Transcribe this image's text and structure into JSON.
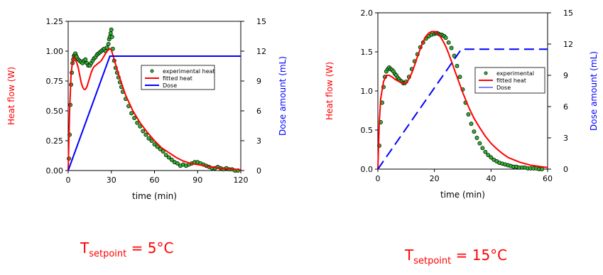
{
  "captions": [
    {
      "main": "T",
      "sub": "setpoint",
      "rest": " = 5°C"
    },
    {
      "main": "T",
      "sub": "setpoint",
      "rest": " = 15°C"
    }
  ],
  "colors": {
    "fit": "#ff0000",
    "dose": "#0000ff",
    "points_fill": "#2fb52f",
    "points_stroke": "#000000"
  },
  "chart_data": [
    {
      "type": "line",
      "xlabel": "time (min)",
      "ylabel": "Heat flow (W)",
      "y2label": "Dose amount (mL)",
      "xlim": [
        0,
        120
      ],
      "ylim": [
        0,
        1.25
      ],
      "y2lim": [
        0,
        15
      ],
      "xticks": [
        "0",
        "30",
        "60",
        "90",
        "120"
      ],
      "yticks": [
        "0.00",
        "0.25",
        "0.50",
        "0.75",
        "1.00",
        "1.25"
      ],
      "y2ticks": [
        "0",
        "3",
        "6",
        "9",
        "12",
        "15"
      ],
      "legend": {
        "position": "right-middle",
        "labels": [
          "experimental heat",
          "fitted heat",
          "Dose"
        ]
      },
      "series": [
        {
          "name": "experimental heat",
          "kind": "points",
          "x": [
            0.5,
            1,
            1.5,
            2,
            2.5,
            3,
            3.5,
            4,
            4.5,
            5,
            5.5,
            6,
            7,
            8,
            9,
            10,
            11,
            12,
            13,
            14,
            15,
            16,
            17,
            18,
            19,
            20,
            21,
            22,
            23,
            24,
            25,
            26,
            27,
            28,
            28.5,
            29,
            29.5,
            30,
            30.5,
            31,
            32,
            33,
            34,
            35,
            36,
            37,
            38,
            40,
            42,
            44,
            46,
            48,
            50,
            52,
            54,
            56,
            58,
            60,
            62,
            64,
            66,
            68,
            70,
            72,
            74,
            76,
            78,
            80,
            82,
            84,
            86,
            88,
            90,
            92,
            94,
            96,
            98,
            100,
            102,
            104,
            106,
            108,
            110,
            112,
            114,
            116,
            118
          ],
          "y": [
            0.1,
            0.3,
            0.55,
            0.72,
            0.82,
            0.9,
            0.93,
            0.96,
            0.97,
            0.98,
            0.96,
            0.95,
            0.93,
            0.92,
            0.91,
            0.9,
            0.92,
            0.93,
            0.9,
            0.88,
            0.88,
            0.9,
            0.92,
            0.94,
            0.95,
            0.97,
            0.98,
            0.99,
            1.0,
            1.01,
            1.02,
            1.0,
            1.03,
            1.06,
            1.1,
            1.12,
            1.15,
            1.18,
            1.12,
            1.02,
            0.92,
            0.86,
            0.82,
            0.78,
            0.74,
            0.7,
            0.66,
            0.6,
            0.54,
            0.48,
            0.44,
            0.4,
            0.37,
            0.33,
            0.3,
            0.27,
            0.25,
            0.22,
            0.2,
            0.18,
            0.16,
            0.13,
            0.11,
            0.09,
            0.07,
            0.06,
            0.04,
            0.05,
            0.04,
            0.05,
            0.06,
            0.07,
            0.07,
            0.06,
            0.05,
            0.04,
            0.03,
            0.02,
            0.02,
            0.03,
            0.02,
            0.01,
            0.02,
            0.01,
            0.01,
            0.0,
            0.0
          ]
        },
        {
          "name": "fitted heat",
          "kind": "line",
          "x": [
            0,
            1,
            2,
            3,
            4,
            5,
            6,
            7,
            8,
            9,
            10,
            11,
            12,
            13,
            14,
            15,
            16,
            17,
            18,
            19,
            20,
            21,
            22,
            23,
            24,
            25,
            26,
            27,
            28,
            29,
            30,
            32,
            34,
            36,
            38,
            40,
            45,
            50,
            55,
            60,
            65,
            70,
            75,
            80,
            85,
            90,
            95,
            100,
            105,
            110,
            115,
            120
          ],
          "y": [
            0,
            0.5,
            0.8,
            0.92,
            0.95,
            0.93,
            0.9,
            0.86,
            0.8,
            0.74,
            0.7,
            0.68,
            0.68,
            0.7,
            0.74,
            0.78,
            0.82,
            0.85,
            0.87,
            0.88,
            0.89,
            0.9,
            0.91,
            0.92,
            0.94,
            0.96,
            0.98,
            1.0,
            1.01,
            1.02,
            1.01,
            0.93,
            0.85,
            0.77,
            0.7,
            0.63,
            0.5,
            0.4,
            0.32,
            0.25,
            0.19,
            0.15,
            0.11,
            0.08,
            0.06,
            0.05,
            0.04,
            0.03,
            0.02,
            0.015,
            0.01,
            0.008
          ]
        },
        {
          "name": "Dose",
          "kind": "line",
          "axis": "right",
          "dashed": false,
          "x": [
            0,
            29,
            120
          ],
          "y": [
            0,
            11.5,
            11.5
          ]
        }
      ]
    },
    {
      "type": "line",
      "xlabel": "time (min)",
      "ylabel": "Heat flow (W)",
      "y2label": "Dose amount (mL)",
      "xlim": [
        0,
        60
      ],
      "ylim": [
        0,
        2.0
      ],
      "y2lim": [
        0,
        15
      ],
      "xticks": [
        "0",
        "20",
        "40",
        "60"
      ],
      "yticks": [
        "0.0",
        "0.5",
        "1.0",
        "1.5",
        "2.0"
      ],
      "y2ticks": [
        "0",
        "3",
        "6",
        "9",
        "12",
        "15"
      ],
      "legend": {
        "position": "right-middle",
        "labels": [
          "experimental",
          "fitted heat",
          "Dose"
        ]
      },
      "series": [
        {
          "name": "experimental",
          "kind": "points",
          "x": [
            0.5,
            1,
            1.5,
            2,
            2.5,
            3,
            3.5,
            4,
            4.5,
            5,
            5.5,
            6,
            6.5,
            7,
            7.5,
            8,
            8.5,
            9,
            9.5,
            10,
            11,
            12,
            13,
            14,
            15,
            16,
            17,
            18,
            19,
            20,
            20.5,
            21,
            21.5,
            22,
            22.5,
            23,
            23.5,
            24,
            25,
            26,
            27,
            28,
            29,
            30,
            31,
            32,
            33,
            34,
            35,
            36,
            37,
            38,
            39,
            40,
            41,
            42,
            43,
            44,
            45,
            46,
            47,
            48,
            49,
            50,
            51,
            52,
            53,
            54,
            55,
            56,
            57,
            58
          ],
          "y": [
            0.3,
            0.6,
            0.85,
            1.05,
            1.18,
            1.25,
            1.28,
            1.3,
            1.28,
            1.27,
            1.25,
            1.22,
            1.2,
            1.17,
            1.15,
            1.13,
            1.12,
            1.1,
            1.1,
            1.12,
            1.18,
            1.28,
            1.38,
            1.47,
            1.56,
            1.62,
            1.67,
            1.7,
            1.72,
            1.73,
            1.74,
            1.74,
            1.73,
            1.72,
            1.72,
            1.71,
            1.7,
            1.68,
            1.62,
            1.55,
            1.45,
            1.32,
            1.18,
            1.02,
            0.85,
            0.7,
            0.58,
            0.48,
            0.4,
            0.33,
            0.27,
            0.22,
            0.18,
            0.15,
            0.12,
            0.1,
            0.08,
            0.07,
            0.06,
            0.05,
            0.04,
            0.03,
            0.03,
            0.02,
            0.02,
            0.02,
            0.01,
            0.01,
            0.01,
            0.01,
            0.0,
            0.0
          ]
        },
        {
          "name": "fitted heat",
          "kind": "line",
          "x": [
            0,
            0.5,
            1,
            2,
            3,
            4,
            5,
            6,
            7,
            8,
            9,
            10,
            11,
            12,
            13,
            14,
            15,
            16,
            17,
            18,
            19,
            20,
            21,
            22,
            23,
            24,
            25,
            26,
            27,
            28,
            29,
            30,
            32,
            34,
            36,
            38,
            40,
            42,
            44,
            46,
            48,
            50,
            52,
            54,
            56,
            58,
            60
          ],
          "y": [
            0,
            0.6,
            0.9,
            1.12,
            1.2,
            1.2,
            1.18,
            1.15,
            1.13,
            1.11,
            1.1,
            1.1,
            1.15,
            1.23,
            1.33,
            1.44,
            1.54,
            1.63,
            1.7,
            1.74,
            1.76,
            1.76,
            1.74,
            1.7,
            1.64,
            1.57,
            1.48,
            1.38,
            1.28,
            1.18,
            1.08,
            0.98,
            0.8,
            0.65,
            0.53,
            0.42,
            0.33,
            0.26,
            0.2,
            0.15,
            0.12,
            0.09,
            0.07,
            0.05,
            0.04,
            0.03,
            0.02
          ]
        },
        {
          "name": "Dose",
          "kind": "line",
          "axis": "right",
          "dashed": true,
          "x": [
            0,
            29.5,
            60
          ],
          "y": [
            0,
            11.5,
            11.5
          ]
        }
      ]
    }
  ]
}
